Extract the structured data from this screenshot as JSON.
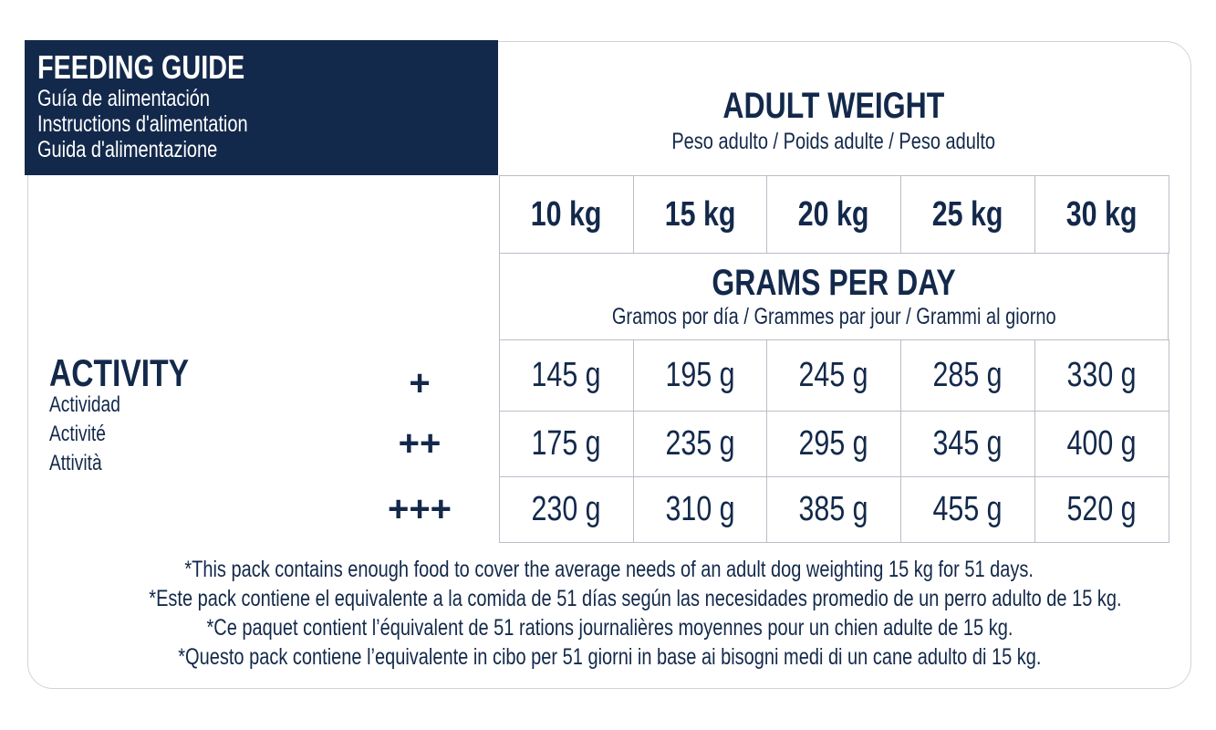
{
  "header": {
    "title": "FEEDING GUIDE",
    "subtitles": [
      "Guía de alimentación",
      "Instructions d'alimentation",
      "Guida d'alimentazione"
    ]
  },
  "weight": {
    "title": "ADULT WEIGHT",
    "subtitle": "Peso adulto / Poids adulte / Peso adulto",
    "columns": [
      "10 kg",
      "15 kg",
      "20 kg",
      "25 kg",
      "30 kg"
    ]
  },
  "grams": {
    "title": "GRAMS PER DAY",
    "subtitle": "Gramos por día / Grammes par jour / Grammi al giorno"
  },
  "activity": {
    "title": "ACTIVITY",
    "subtitles": [
      "Actividad",
      "Activité",
      "Attività"
    ]
  },
  "table": {
    "rows": [
      {
        "level": "+",
        "cells": [
          "145 g",
          "195 g",
          "245 g",
          "285 g",
          "330 g"
        ]
      },
      {
        "level": "++",
        "cells": [
          "175 g",
          "235 g",
          "295 g",
          "345 g",
          "400 g"
        ]
      },
      {
        "level": "+++",
        "cells": [
          "230 g",
          "310 g",
          "385 g",
          "455 g",
          "520 g"
        ]
      }
    ]
  },
  "footnotes": [
    "*This pack contains enough food to cover the average needs of an adult dog weighting 15 kg for 51 days.",
    "*Este pack contiene el equivalente a la comida de 51 días según las necesidades promedio de un perro adulto de 15 kg.",
    "*Ce paquet contient l’équivalent de 51 rations journalières moyennes pour un chien adulte de 15 kg.",
    "*Questo pack contiene l’equivalente in cibo per 51 giorni in base ai bisogni medi di un cane adulto di 15 kg."
  ]
}
